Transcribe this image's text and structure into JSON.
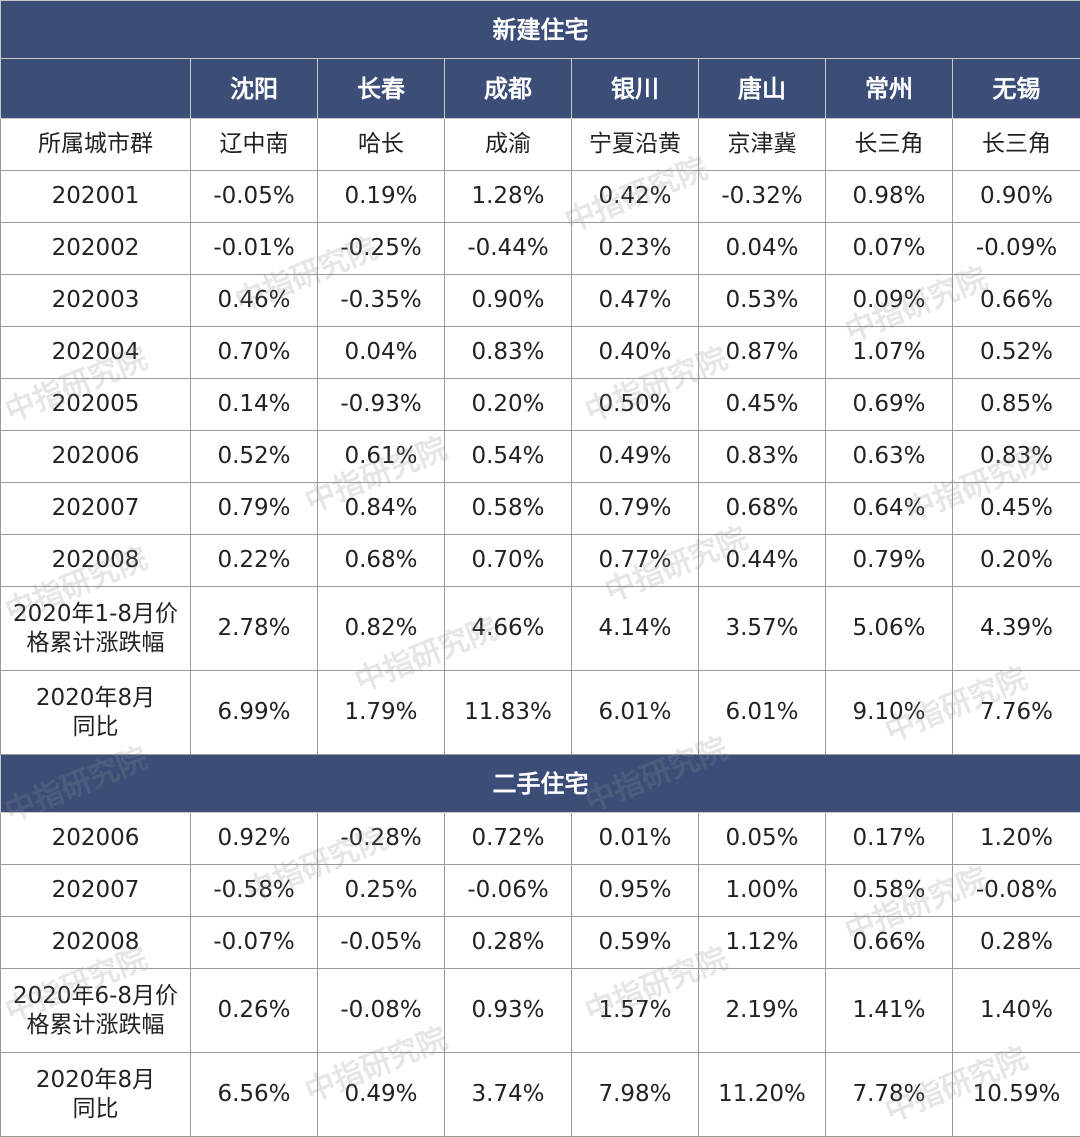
{
  "table": {
    "watermark": "中指研究院",
    "columns": [
      "沈阳",
      "长春",
      "成都",
      "银川",
      "唐山",
      "常州",
      "无锡"
    ],
    "sections": [
      {
        "title": "新建住宅",
        "rows": [
          [
            "所属城市群",
            "辽中南",
            "哈长",
            "成渝",
            "宁夏沿黄",
            "京津冀",
            "长三角",
            "长三角"
          ],
          [
            "202001",
            "-0.05%",
            "0.19%",
            "1.28%",
            "0.42%",
            "-0.32%",
            "0.98%",
            "0.90%"
          ],
          [
            "202002",
            "-0.01%",
            "-0.25%",
            "-0.44%",
            "0.23%",
            "0.04%",
            "0.07%",
            "-0.09%"
          ],
          [
            "202003",
            "0.46%",
            "-0.35%",
            "0.90%",
            "0.47%",
            "0.53%",
            "0.09%",
            "0.66%"
          ],
          [
            "202004",
            "0.70%",
            "0.04%",
            "0.83%",
            "0.40%",
            "0.87%",
            "1.07%",
            "0.52%"
          ],
          [
            "202005",
            "0.14%",
            "-0.93%",
            "0.20%",
            "0.50%",
            "0.45%",
            "0.69%",
            "0.85%"
          ],
          [
            "202006",
            "0.52%",
            "0.61%",
            "0.54%",
            "0.49%",
            "0.83%",
            "0.63%",
            "0.83%"
          ],
          [
            "202007",
            "0.79%",
            "0.84%",
            "0.58%",
            "0.79%",
            "0.68%",
            "0.64%",
            "0.45%"
          ],
          [
            "202008",
            "0.22%",
            "0.68%",
            "0.70%",
            "0.77%",
            "0.44%",
            "0.79%",
            "0.20%"
          ],
          [
            "2020年1-8月价格累计涨跌幅",
            "2.78%",
            "0.82%",
            "4.66%",
            "4.14%",
            "3.57%",
            "5.06%",
            "4.39%"
          ],
          [
            "2020年8月\n同比",
            "6.99%",
            "1.79%",
            "11.83%",
            "6.01%",
            "6.01%",
            "9.10%",
            "7.76%"
          ]
        ]
      },
      {
        "title": "二手住宅",
        "rows": [
          [
            "202006",
            "0.92%",
            "-0.28%",
            "0.72%",
            "0.01%",
            "0.05%",
            "0.17%",
            "1.20%"
          ],
          [
            "202007",
            "-0.58%",
            "0.25%",
            "-0.06%",
            "0.95%",
            "1.00%",
            "0.58%",
            "-0.08%"
          ],
          [
            "202008",
            "-0.07%",
            "-0.05%",
            "0.28%",
            "0.59%",
            "1.12%",
            "0.66%",
            "0.28%"
          ],
          [
            "2020年6-8月价格累计涨跌幅",
            "0.26%",
            "-0.08%",
            "0.93%",
            "1.57%",
            "2.19%",
            "1.41%",
            "1.40%"
          ],
          [
            "2020年8月\n同比",
            "6.56%",
            "0.49%",
            "3.74%",
            "7.98%",
            "11.20%",
            "7.78%",
            "10.59%"
          ]
        ]
      }
    ]
  }
}
